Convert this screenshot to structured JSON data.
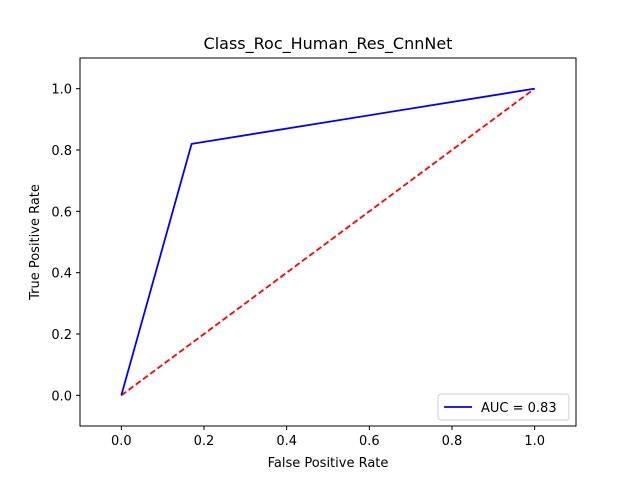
{
  "chart_data": {
    "type": "line",
    "title": "Class_Roc_Human_Res_CnnNet",
    "xlabel": "False Positive Rate",
    "ylabel": "True Positive Rate",
    "xlim": [
      -0.1,
      1.1
    ],
    "ylim": [
      -0.1,
      1.1
    ],
    "xticks": [
      0.0,
      0.2,
      0.4,
      0.6,
      0.8,
      1.0
    ],
    "yticks": [
      0.0,
      0.2,
      0.4,
      0.6,
      0.8,
      1.0
    ],
    "xtick_labels": [
      "0.0",
      "0.2",
      "0.4",
      "0.6",
      "0.8",
      "1.0"
    ],
    "ytick_labels": [
      "0.0",
      "0.2",
      "0.4",
      "0.6",
      "0.8",
      "1.0"
    ],
    "grid": false,
    "legend_position": "lower-right",
    "series": [
      {
        "name": "AUC = 0.83",
        "color": "#0000ff",
        "style": "solid",
        "x": [
          0.0,
          0.17,
          1.0
        ],
        "y": [
          0.0,
          0.82,
          1.0
        ]
      },
      {
        "color": "#ff0000",
        "style": "dashed",
        "x": [
          0.0,
          1.0
        ],
        "y": [
          0.0,
          1.0
        ]
      }
    ]
  }
}
